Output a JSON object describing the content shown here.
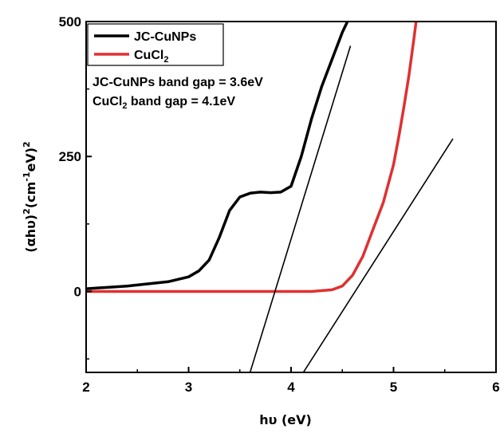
{
  "chart_data": {
    "type": "line",
    "xlabel": "hυ (eV)",
    "ylabel": "(αhυ)²(cm⁻¹eV)²",
    "xlim": [
      2,
      6
    ],
    "ylim": [
      -150,
      500
    ],
    "x_ticks": [
      "2",
      "3",
      "4",
      "5",
      "6"
    ],
    "y_ticks": [
      "0",
      "250",
      "500"
    ],
    "y_tick_values": [
      0,
      250,
      500
    ],
    "legend_position": "top-left",
    "annotations": [
      "JC-CuNPs band gap = 3.6eV",
      "CuCl2 band gap = 4.1eV"
    ],
    "series": [
      {
        "name": "JC-CuNPs",
        "color": "#000000",
        "x": [
          2.0,
          2.4,
          2.8,
          3.0,
          3.1,
          3.2,
          3.3,
          3.4,
          3.5,
          3.6,
          3.7,
          3.8,
          3.9,
          4.0,
          4.1,
          4.2,
          4.3,
          4.4,
          4.5,
          4.55
        ],
        "y": [
          5,
          10,
          18,
          27,
          38,
          58,
          100,
          150,
          175,
          182,
          184,
          183,
          184,
          195,
          250,
          320,
          380,
          430,
          480,
          500
        ]
      },
      {
        "name": "CuCl2",
        "color": "#e03030",
        "x": [
          2.0,
          3.0,
          3.8,
          4.2,
          4.4,
          4.5,
          4.6,
          4.7,
          4.8,
          4.9,
          5.0,
          5.05,
          5.1,
          5.15,
          5.2,
          5.22
        ],
        "y": [
          0,
          0,
          0,
          0,
          3,
          10,
          30,
          65,
          115,
          165,
          235,
          285,
          340,
          400,
          470,
          500
        ]
      },
      {
        "name": "",
        "color": "#000000",
        "x": [
          3.6,
          4.58
        ],
        "y": [
          -150,
          455
        ]
      },
      {
        "name": "",
        "color": "#000000",
        "x": [
          4.12,
          5.58
        ],
        "y": [
          -150,
          283
        ]
      }
    ]
  }
}
